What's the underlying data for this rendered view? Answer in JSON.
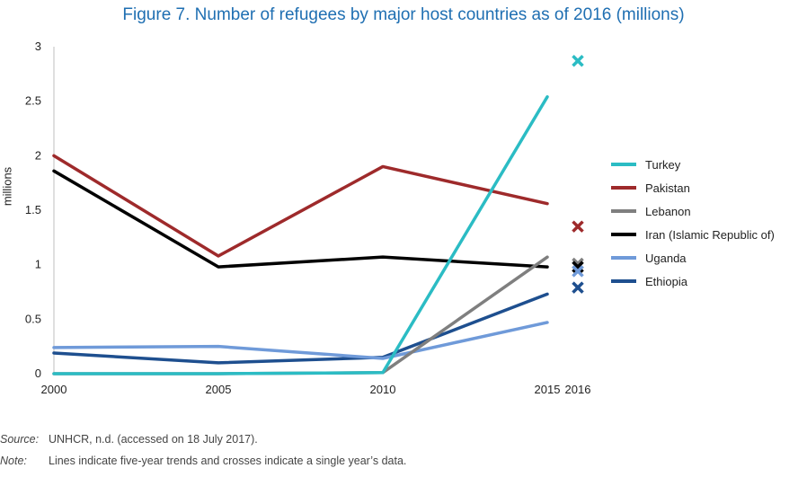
{
  "title": "Figure 7. Number of refugees by major host countries as of 2016 (millions)",
  "source_label": "Source:",
  "source_text": "UNHCR, n.d. (accessed on 18 July 2017).",
  "note_label": "Note:",
  "note_text": "Lines indicate five-year trends and crosses indicate a single year’s data.",
  "chart_data": {
    "type": "line",
    "title": "Figure 7. Number of refugees by major host countries as of 2016 (millions)",
    "xlabel": "",
    "ylabel": "millions",
    "x_ticks": [
      "2000",
      "2005",
      "2010",
      "2015",
      "2016"
    ],
    "y_ticks": [
      "0",
      "0.5",
      "1",
      "1.5",
      "2",
      "2.5",
      "3"
    ],
    "ylim": [
      0,
      3
    ],
    "grid": false,
    "legend_position": "right",
    "line_x": [
      2000,
      2005,
      2010,
      2015
    ],
    "series": [
      {
        "name": "Turkey",
        "color": "#2bbcc4",
        "values": [
          0.0,
          0.0,
          0.01,
          2.54
        ],
        "cross_2016": 2.87
      },
      {
        "name": "Pakistan",
        "color": "#9e2a2b",
        "values": [
          2.0,
          1.08,
          1.9,
          1.56
        ],
        "cross_2016": 1.35
      },
      {
        "name": "Lebanon",
        "color": "#7f7f7f",
        "values": [
          0.0,
          0.0,
          0.01,
          1.07
        ],
        "cross_2016": 1.01
      },
      {
        "name": "Iran (Islamic Republic of)",
        "color": "#000000",
        "values": [
          1.86,
          0.98,
          1.07,
          0.98
        ],
        "cross_2016": 0.98
      },
      {
        "name": "Uganda",
        "color": "#6f9ad9",
        "values": [
          0.24,
          0.25,
          0.14,
          0.47
        ],
        "cross_2016": 0.94
      },
      {
        "name": "Ethiopia",
        "color": "#1e4f8f",
        "values": [
          0.19,
          0.1,
          0.15,
          0.73
        ],
        "cross_2016": 0.79
      }
    ]
  }
}
